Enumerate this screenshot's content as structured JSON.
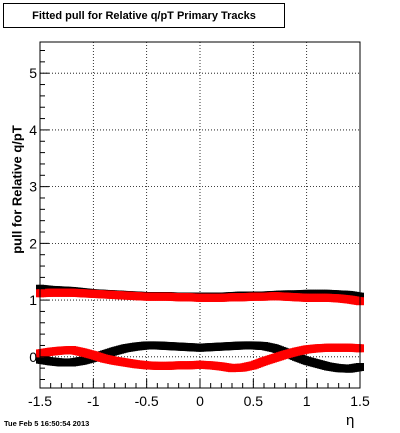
{
  "chart_data": {
    "type": "scatter",
    "title": "Fitted pull for Relative q/pT  Primary Tracks",
    "ylabel": "pull for Relative q/pT",
    "xlabel": "η",
    "xlim": [
      -1.5,
      1.5
    ],
    "ylim": [
      -0.55,
      5.55
    ],
    "grid": true,
    "x_ticks": [
      -1.5,
      -1,
      -0.5,
      0,
      0.5,
      1,
      1.5
    ],
    "x_tick_labels": [
      "-1.5",
      "-1",
      "-0.5",
      "0",
      "0.5",
      "1",
      "1.5"
    ],
    "y_ticks": [
      0,
      1,
      2,
      3,
      4,
      5
    ],
    "y_tick_labels": [
      "0",
      "1",
      "2",
      "3",
      "4",
      "5"
    ],
    "series": [
      {
        "color": "#000000",
        "x": [
          -1.5,
          -1.4,
          -1.3,
          -1.2,
          -1.1,
          -1.0,
          -0.9,
          -0.8,
          -0.7,
          -0.6,
          -0.5,
          -0.4,
          -0.3,
          -0.2,
          -0.1,
          0.0,
          0.1,
          0.2,
          0.3,
          0.4,
          0.5,
          0.6,
          0.7,
          0.8,
          0.9,
          1.0,
          1.1,
          1.2,
          1.3,
          1.4,
          1.5
        ],
        "y": [
          1.2,
          1.18,
          1.17,
          1.16,
          1.14,
          1.12,
          1.11,
          1.1,
          1.09,
          1.08,
          1.07,
          1.07,
          1.07,
          1.06,
          1.06,
          1.06,
          1.06,
          1.06,
          1.07,
          1.08,
          1.08,
          1.08,
          1.09,
          1.1,
          1.1,
          1.11,
          1.11,
          1.11,
          1.1,
          1.09,
          1.06
        ]
      },
      {
        "color": "#ff0000",
        "x": [
          -1.5,
          -1.4,
          -1.3,
          -1.2,
          -1.1,
          -1.0,
          -0.9,
          -0.8,
          -0.7,
          -0.6,
          -0.5,
          -0.4,
          -0.3,
          -0.2,
          -0.1,
          0.0,
          0.1,
          0.2,
          0.3,
          0.4,
          0.5,
          0.6,
          0.7,
          0.8,
          0.9,
          1.0,
          1.1,
          1.2,
          1.3,
          1.4,
          1.5
        ],
        "y": [
          1.12,
          1.13,
          1.13,
          1.13,
          1.12,
          1.11,
          1.1,
          1.09,
          1.08,
          1.07,
          1.06,
          1.06,
          1.06,
          1.05,
          1.05,
          1.04,
          1.04,
          1.04,
          1.05,
          1.05,
          1.06,
          1.06,
          1.07,
          1.06,
          1.05,
          1.04,
          1.04,
          1.04,
          1.03,
          1.01,
          0.98
        ]
      },
      {
        "color": "#000000",
        "x": [
          -1.5,
          -1.4,
          -1.3,
          -1.2,
          -1.1,
          -1.0,
          -0.9,
          -0.8,
          -0.7,
          -0.6,
          -0.5,
          -0.4,
          -0.3,
          -0.2,
          -0.1,
          0.0,
          0.1,
          0.2,
          0.3,
          0.4,
          0.5,
          0.6,
          0.7,
          0.8,
          0.9,
          1.0,
          1.1,
          1.2,
          1.3,
          1.4,
          1.5
        ],
        "y": [
          -0.05,
          -0.08,
          -0.1,
          -0.1,
          -0.07,
          -0.02,
          0.04,
          0.1,
          0.15,
          0.18,
          0.2,
          0.2,
          0.19,
          0.18,
          0.17,
          0.16,
          0.17,
          0.18,
          0.19,
          0.2,
          0.2,
          0.19,
          0.15,
          0.08,
          0.0,
          -0.07,
          -0.12,
          -0.17,
          -0.2,
          -0.21,
          -0.18
        ]
      },
      {
        "color": "#ff0000",
        "x": [
          -1.5,
          -1.4,
          -1.3,
          -1.2,
          -1.1,
          -1.0,
          -0.9,
          -0.8,
          -0.7,
          -0.6,
          -0.5,
          -0.4,
          -0.3,
          -0.2,
          -0.1,
          0.0,
          0.1,
          0.2,
          0.3,
          0.4,
          0.5,
          0.6,
          0.7,
          0.8,
          0.9,
          1.0,
          1.1,
          1.2,
          1.3,
          1.4,
          1.5
        ],
        "y": [
          0.06,
          0.09,
          0.11,
          0.12,
          0.08,
          0.03,
          -0.03,
          -0.07,
          -0.1,
          -0.13,
          -0.15,
          -0.16,
          -0.16,
          -0.15,
          -0.15,
          -0.14,
          -0.15,
          -0.17,
          -0.2,
          -0.19,
          -0.15,
          -0.08,
          -0.02,
          0.04,
          0.09,
          0.13,
          0.15,
          0.16,
          0.16,
          0.16,
          0.15
        ]
      }
    ],
    "timestamp": "Tue Feb  5 16:50:54 2013"
  }
}
